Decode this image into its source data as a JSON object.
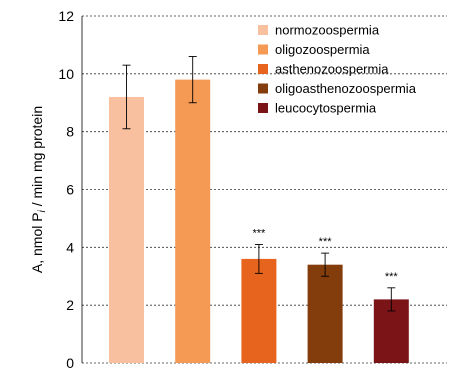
{
  "chart_data": {
    "type": "bar",
    "ylabel_prefix": "A, nmol P",
    "ylabel_sub": "i",
    "ylabel_suffix": " / min mg protein",
    "ylim": [
      0,
      12
    ],
    "yticks": [
      "0",
      "2",
      "4",
      "6",
      "8",
      "10",
      "12"
    ],
    "grid": true,
    "legend_position": "top-right",
    "series": [
      {
        "name": "normozoospermia",
        "value": 9.2,
        "error": 1.1,
        "significance": "",
        "color": "#f9c09f"
      },
      {
        "name": "oligozoospermia",
        "value": 9.8,
        "error": 0.8,
        "significance": "",
        "color": "#f59a55"
      },
      {
        "name": "asthenozoospermia",
        "value": 3.6,
        "error": 0.5,
        "significance": "***",
        "color": "#e6641e"
      },
      {
        "name": "oligoasthenozoospermia",
        "value": 3.4,
        "error": 0.4,
        "significance": "***",
        "color": "#833c0b"
      },
      {
        "name": "leucocytospermia",
        "value": 2.2,
        "error": 0.4,
        "significance": "***",
        "color": "#7b1417"
      }
    ]
  }
}
